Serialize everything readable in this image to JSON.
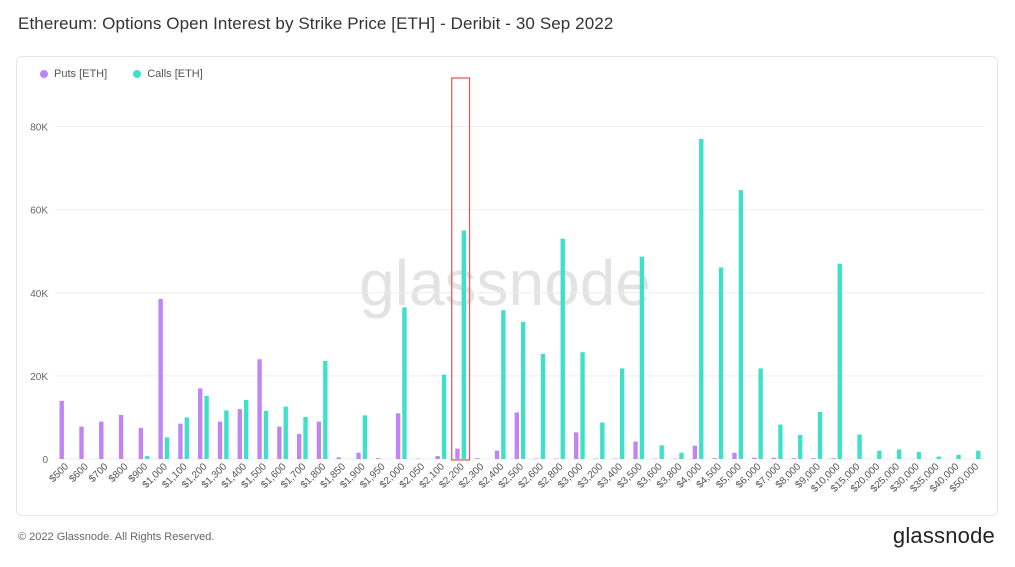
{
  "header": {
    "title": "Ethereum: Options Open Interest by Strike Price [ETH] - Deribit - 30 Sep 2022"
  },
  "legend": {
    "puts_label": "Puts [ETH]",
    "calls_label": "Calls [ETH]"
  },
  "colors": {
    "puts": "#c084f5",
    "calls": "#3ee0c8",
    "highlight": "#e05555",
    "grid": "#eeeeee",
    "watermark": "#e3e3e3"
  },
  "watermark": "glassnode",
  "footer": {
    "copyright": "© 2022 Glassnode. All Rights Reserved.",
    "brand": "glassnode"
  },
  "chart_data": {
    "type": "bar",
    "title": "Ethereum: Options Open Interest by Strike Price [ETH] - Deribit - 30 Sep 2022",
    "xlabel": "",
    "ylabel": "",
    "ylim": [
      0,
      90000
    ],
    "yticks": [
      "0",
      "20K",
      "40K",
      "60K",
      "80K"
    ],
    "grid": true,
    "legend_position": "top-left",
    "highlighted_category": "$2,200",
    "categories": [
      "$500",
      "$600",
      "$700",
      "$800",
      "$900",
      "$1,000",
      "$1,100",
      "$1,200",
      "$1,300",
      "$1,400",
      "$1,500",
      "$1,600",
      "$1,700",
      "$1,800",
      "$1,850",
      "$1,900",
      "$1,950",
      "$2,000",
      "$2,050",
      "$2,100",
      "$2,200",
      "$2,300",
      "$2,400",
      "$2,500",
      "$2,600",
      "$2,800",
      "$3,000",
      "$3,200",
      "$3,400",
      "$3,500",
      "$3,600",
      "$3,800",
      "$4,000",
      "$4,500",
      "$5,000",
      "$6,000",
      "$7,000",
      "$8,000",
      "$9,000",
      "$10,000",
      "$15,000",
      "$20,000",
      "$25,000",
      "$30,000",
      "$35,000",
      "$40,000",
      "$50,000"
    ],
    "series": [
      {
        "name": "Puts [ETH]",
        "values": [
          14000,
          7800,
          9000,
          10600,
          7500,
          38500,
          8500,
          17000,
          9000,
          12000,
          24000,
          7800,
          6000,
          9000,
          400,
          1500,
          200,
          11000,
          100,
          700,
          2500,
          200,
          2000,
          11200,
          100,
          100,
          6400,
          100,
          100,
          4200,
          100,
          100,
          3200,
          200,
          1500,
          300,
          300,
          200,
          200,
          200,
          0,
          0,
          0,
          0,
          0,
          0,
          0
        ]
      },
      {
        "name": "Calls [ETH]",
        "values": [
          0,
          0,
          0,
          0,
          700,
          5200,
          10000,
          15200,
          11700,
          14200,
          11600,
          12600,
          10100,
          23600,
          0,
          10500,
          0,
          36500,
          0,
          20300,
          55000,
          0,
          35800,
          33000,
          25300,
          53000,
          25700,
          8800,
          21800,
          48700,
          3300,
          1500,
          77000,
          46100,
          64700,
          21800,
          8300,
          5800,
          11300,
          47000,
          5900,
          2000,
          2300,
          1700,
          600,
          1000,
          2000
        ]
      }
    ]
  }
}
